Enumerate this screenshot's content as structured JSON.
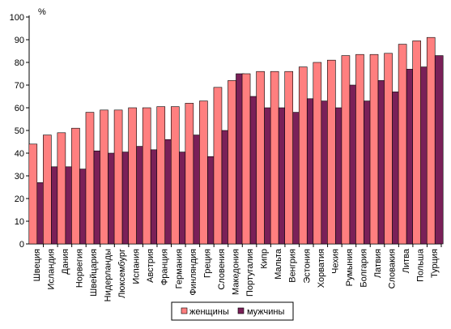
{
  "chart_data": {
    "type": "bar",
    "title": "",
    "xlabel": "",
    "ylabel": "%",
    "ylim": [
      0,
      100
    ],
    "yticks": [
      0,
      10,
      20,
      30,
      40,
      50,
      60,
      70,
      80,
      90,
      100
    ],
    "grid": false,
    "legend_position": "bottom",
    "categories": [
      "Швеция",
      "Исландия",
      "Дания",
      "Норвегия",
      "Швейцария",
      "Нидерланды",
      "Люксембург",
      "Испания",
      "Австрия",
      "Франция",
      "Германия",
      "Финляндия",
      "Греция",
      "Словения",
      "Македония",
      "Португалия",
      "Кипр",
      "Мальта",
      "Венгрия",
      "Эстония",
      "Хорватия",
      "Чехия",
      "Румыния",
      "Болгария",
      "Латвия",
      "Словакия",
      "Литва",
      "Польша",
      "Турция"
    ],
    "series": [
      {
        "name": "женщины",
        "color": "#ff7f7f",
        "values": [
          44,
          48,
          49,
          51,
          58,
          59,
          59,
          60,
          60,
          60.5,
          60.5,
          62,
          63,
          69,
          72,
          75,
          76,
          76,
          76,
          78,
          80,
          81,
          83,
          83.5,
          83.5,
          84,
          88,
          89.5,
          91
        ]
      },
      {
        "name": "мужчины",
        "color": "#7a2058",
        "values": [
          27,
          34,
          34,
          33,
          41,
          40,
          40.5,
          43,
          41.5,
          46,
          40.5,
          48,
          38.5,
          50,
          75,
          65,
          60,
          60,
          58,
          64,
          63,
          60,
          70,
          63,
          72,
          67,
          77,
          78,
          83
        ]
      }
    ]
  }
}
